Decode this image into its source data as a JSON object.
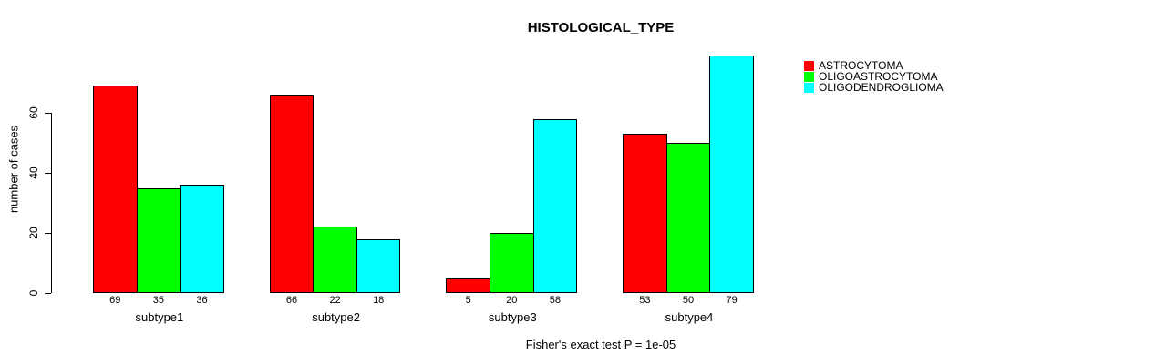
{
  "chart_data": {
    "type": "bar",
    "title": "HISTOLOGICAL_TYPE",
    "ylabel": "number of cases",
    "xlabel": "",
    "caption": "Fisher's exact test P = 1e-05",
    "categories": [
      "subtype1",
      "subtype2",
      "subtype3",
      "subtype4"
    ],
    "series": [
      {
        "name": "ASTROCYTOMA",
        "color": "#ff0000",
        "values": [
          69,
          66,
          5,
          53
        ]
      },
      {
        "name": "OLIGOASTROCYTOMA",
        "color": "#00ff00",
        "values": [
          35,
          22,
          20,
          50
        ]
      },
      {
        "name": "OLIGODENDROGLIOMA",
        "color": "#00ffff",
        "values": [
          36,
          18,
          58,
          79
        ]
      }
    ],
    "yticks": [
      0,
      20,
      40,
      60
    ],
    "ylim": [
      0,
      80
    ],
    "grid": false,
    "legend_position": "top-right",
    "bar_border_color": "#000000",
    "axis_color": "#000000",
    "background_color": "#ffffff"
  }
}
